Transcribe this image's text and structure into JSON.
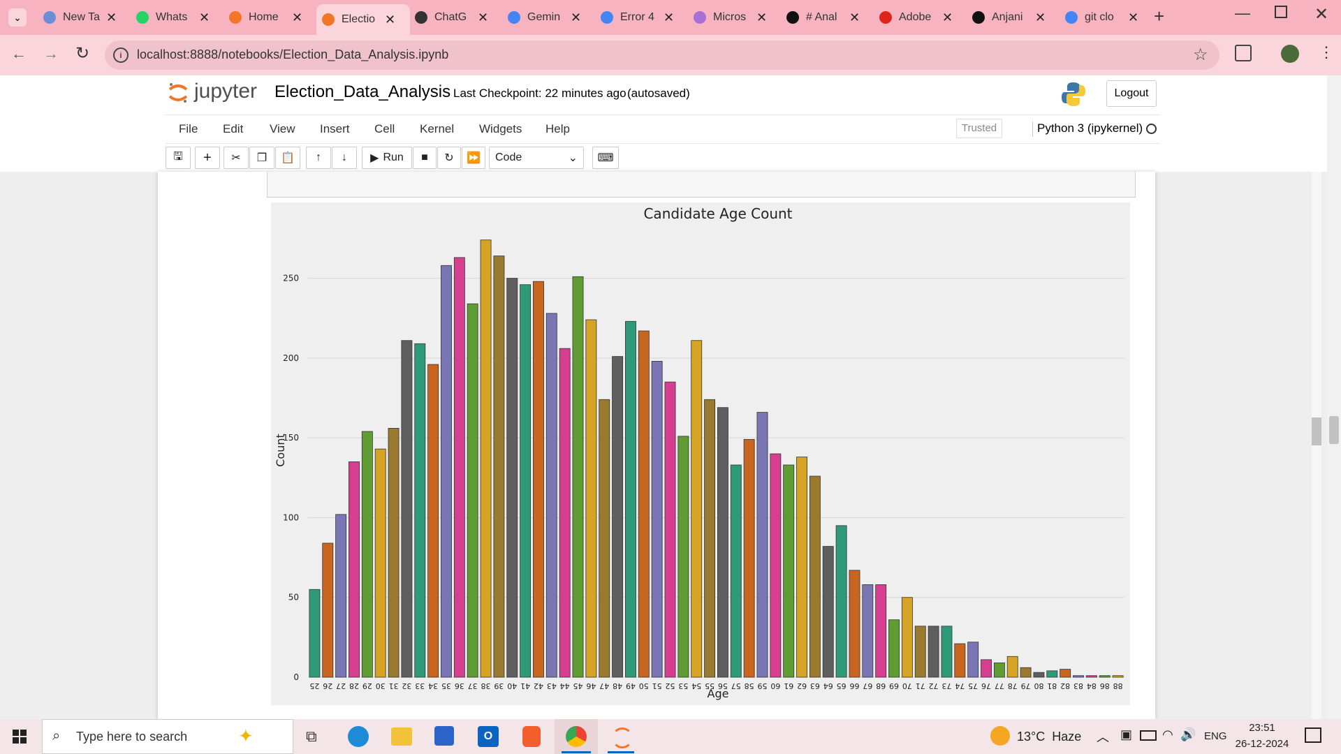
{
  "browser": {
    "tabs": [
      {
        "label": "New Ta",
        "color": "#6b8fd6"
      },
      {
        "label": "Whats",
        "color": "#25d366"
      },
      {
        "label": "Home",
        "color": "#f37626"
      },
      {
        "label": "Electio",
        "color": "#f37626",
        "active": true
      },
      {
        "label": "ChatG",
        "color": "#333333"
      },
      {
        "label": "Gemin",
        "color": "#4285f4"
      },
      {
        "label": "Error 4",
        "color": "#4285f4"
      },
      {
        "label": "Micros",
        "color": "#a86fd6"
      },
      {
        "label": "# Anal",
        "color": "#111111"
      },
      {
        "label": "Adobe",
        "color": "#e0241b"
      },
      {
        "label": "Anjani",
        "color": "#111111"
      },
      {
        "label": "git clo",
        "color": "#4285f4"
      }
    ],
    "url": "localhost:8888/notebooks/Election_Data_Analysis.ipynb"
  },
  "jupyter": {
    "logo_text": "jupyter",
    "notebook_name": "Election_Data_Analysis",
    "checkpoint": "Last Checkpoint: 22 minutes ago",
    "autosaved": "(autosaved)",
    "logout_label": "Logout",
    "menus": [
      "File",
      "Edit",
      "View",
      "Insert",
      "Cell",
      "Kernel",
      "Widgets",
      "Help"
    ],
    "trusted": "Trusted",
    "kernel": "Python 3 (ipykernel)",
    "run_label": "Run",
    "cell_type": "Code"
  },
  "chart_data": {
    "type": "bar",
    "title": "Candidate Age Count",
    "xlabel": "Age",
    "ylabel": "Count",
    "ylim": [
      0,
      280
    ],
    "yticks": [
      0,
      50,
      100,
      150,
      200,
      250
    ],
    "grid": true,
    "categories": [
      "25",
      "26",
      "27",
      "28",
      "29",
      "30",
      "31",
      "32",
      "33",
      "34",
      "35",
      "36",
      "37",
      "38",
      "39",
      "40",
      "41",
      "42",
      "43",
      "44",
      "45",
      "46",
      "47",
      "48",
      "49",
      "50",
      "51",
      "52",
      "53",
      "54",
      "55",
      "56",
      "57",
      "58",
      "59",
      "60",
      "61",
      "62",
      "63",
      "64",
      "65",
      "66",
      "67",
      "68",
      "69",
      "70",
      "71",
      "72",
      "73",
      "74",
      "75",
      "76",
      "77",
      "78",
      "79",
      "80",
      "81",
      "82",
      "83",
      "84",
      "86",
      "88"
    ],
    "values": [
      55,
      84,
      102,
      135,
      154,
      143,
      156,
      211,
      209,
      196,
      258,
      263,
      234,
      274,
      264,
      250,
      246,
      248,
      228,
      206,
      251,
      224,
      174,
      201,
      223,
      217,
      198,
      185,
      151,
      211,
      174,
      169,
      133,
      149,
      166,
      140,
      133,
      138,
      126,
      82,
      95,
      67,
      58,
      58,
      36,
      50,
      32,
      32,
      32,
      21,
      22,
      11,
      9,
      13,
      6,
      3,
      4,
      5,
      1,
      1,
      1,
      1
    ],
    "colors": [
      "#2e9a77",
      "#c8651f",
      "#7a76b3",
      "#d63f8f",
      "#5f9d34",
      "#d5a425",
      "#997a2e",
      "#5f5f5f"
    ]
  },
  "taskbar": {
    "search_placeholder": "Type here to search",
    "weather": "13°C  Haze",
    "language": "ENG",
    "time": "23:51",
    "date": "26-12-2024"
  }
}
